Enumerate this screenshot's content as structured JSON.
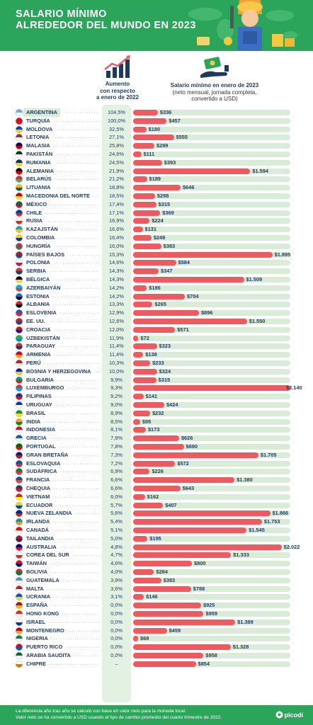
{
  "header": {
    "title_line1": "SALARIO MÍNIMO",
    "title_line2": "ALREDEDOR DEL MUNDO EN 2023"
  },
  "columns": {
    "increase_line1": "Aumento",
    "increase_line2": "con respecto",
    "increase_line3": "a enero de 2022",
    "wage_title": "Salario mínimo en enero de 2023",
    "wage_sub1": "(neto mensual, jornada completa,",
    "wage_sub2": "convertido a USD)"
  },
  "footer": {
    "note_line1": "La diferencia año tras año se calculó con base en valor neto para la moneda local.",
    "note_line2": "Valor neto se ha convertido a USD usando el tipo de cambio promedio del cuarto trimestre de 2022.",
    "logo": "picodi"
  },
  "colors": {
    "green": "#2aa55a",
    "bar": "#f05a5e",
    "track": "#d8ecd8",
    "pct_bg": "#e3f1e2"
  },
  "chart_data": {
    "type": "bar",
    "orientation": "horizontal",
    "categories": [
      "ARGENTINA",
      "TURQUÍA",
      "MOLDOVA",
      "LETONIA",
      "MALASIA",
      "PAKISTÁN",
      "RUMANIA",
      "ALEMANIA",
      "BELARÚS",
      "LITUANIA",
      "MACEDONIA DEL NORTE",
      "MÉXICO",
      "CHILE",
      "RUSIA",
      "KAZAJSTÁN",
      "COLOMBIA",
      "HUNGRÍA",
      "PAÍSES BAJOS",
      "POLONIA",
      "SERBIA",
      "BÉLGICA",
      "AZERBAIYÁN",
      "ESTONIA",
      "ALBANIA",
      "ESLOVENIA",
      "EE. UU.",
      "CROACIA",
      "UZBEKISTÁN",
      "PARAGUAY",
      "ARMENIA",
      "PERÚ",
      "BOSNIA Y HERZEGOVINA",
      "BULGARIA",
      "LUXEMBURGO",
      "FILIPINAS",
      "URUGUAY",
      "BRASIL",
      "INDIA",
      "INDONESIA",
      "GRECIA",
      "PORTUGAL",
      "GRAN BRETAÑA",
      "ESLOVAQUIA",
      "SUDÁFRICA",
      "FRANCIA",
      "CHEQUIA",
      "VIETNAM",
      "ECUADOR",
      "NUEVA ZELANDIA",
      "IRLANDA",
      "CANADÁ",
      "TAILANDIA",
      "AUSTRALIA",
      "COREA DEL SUR",
      "TAIWÁN",
      "BOLIVIA",
      "GUATEMALA",
      "MALTA",
      "UCRANIA",
      "ESPAÑA",
      "HONG KONG",
      "ISRAEL",
      "MONTENEGRO",
      "NIGERIA",
      "PUERTO RICO",
      "ARABIA SAUDITA",
      "CHIPRE"
    ],
    "increase": [
      "104,5%",
      "100,0%",
      "32,5%",
      "27,1%",
      "25,8%",
      "24,6%",
      "24,5%",
      "21,9%",
      "21,2%",
      "18,8%",
      "18,5%",
      "17,4%",
      "17,1%",
      "16,9%",
      "16,6%",
      "16,4%",
      "16,0%",
      "15,3%",
      "14,6%",
      "14,3%",
      "14,3%",
      "14,2%",
      "14,2%",
      "13,3%",
      "12,9%",
      "12,6%",
      "12,0%",
      "11,9%",
      "11,4%",
      "11,4%",
      "10,3%",
      "10,0%",
      "9,9%",
      "9,3%",
      "9,2%",
      "9,0%",
      "8,9%",
      "8,5%",
      "8,1%",
      "7,9%",
      "7,8%",
      "7,3%",
      "7,2%",
      "6,9%",
      "6,6%",
      "6,6%",
      "6,0%",
      "5,7%",
      "5,6%",
      "5,4%",
      "5,1%",
      "5,0%",
      "4,8%",
      "4,7%",
      "4,6%",
      "4,0%",
      "3,9%",
      "3,6%",
      "3,1%",
      "0,0%",
      "0,0%",
      "0,0%",
      "0,0%",
      "0,0%",
      "0,0%",
      "0,0%",
      "–"
    ],
    "values": [
      336,
      457,
      180,
      555,
      289,
      111,
      393,
      1594,
      189,
      646,
      298,
      315,
      369,
      224,
      131,
      249,
      383,
      1895,
      584,
      347,
      1509,
      186,
      704,
      265,
      896,
      1550,
      571,
      72,
      323,
      138,
      233,
      324,
      315,
      2140,
      141,
      424,
      232,
      95,
      173,
      626,
      690,
      1705,
      572,
      226,
      1380,
      643,
      162,
      407,
      1866,
      1753,
      1545,
      195,
      2022,
      1333,
      800,
      284,
      383,
      788,
      146,
      925,
      959,
      1389,
      459,
      68,
      1328,
      958,
      854
    ],
    "labels": [
      "$336",
      "$457",
      "$180",
      "$555",
      "$289",
      "$111",
      "$393",
      "$1.594",
      "$189",
      "$646",
      "$298",
      "$315",
      "$369",
      "$224",
      "$131",
      "$249",
      "$383",
      "$1.895",
      "$584",
      "$347",
      "$1.509",
      "$186",
      "$704",
      "$265",
      "$896",
      "$1.550",
      "$571",
      "$72",
      "$323",
      "$138",
      "$233",
      "$324",
      "$315",
      "$2.140",
      "$141",
      "$424",
      "$232",
      "$95",
      "$173",
      "$626",
      "$690",
      "$1.705",
      "$572",
      "$226",
      "$1.380",
      "$643",
      "$162",
      "$407",
      "$1.866",
      "$1.753",
      "$1.545",
      "$195",
      "$2.022",
      "$1.333",
      "$800",
      "$284",
      "$383",
      "$788",
      "$146",
      "$925",
      "$959",
      "$1.389",
      "$459",
      "$68",
      "$1.328",
      "$958",
      "$854"
    ],
    "highlight": "ARGENTINA",
    "flag_colors": [
      [
        "#75aadb",
        "#fff"
      ],
      [
        "#e30a17",
        "#e30a17"
      ],
      [
        "#0046ae",
        "#ffd200"
      ],
      [
        "#9e3039",
        "#fff"
      ],
      [
        "#010066",
        "#cc0001"
      ],
      [
        "#01411c",
        "#fff"
      ],
      [
        "#002b7f",
        "#fcd116"
      ],
      [
        "#000",
        "#dd0000"
      ],
      [
        "#c8313e",
        "#4aa657"
      ],
      [
        "#fdb913",
        "#006a44"
      ],
      [
        "#d20000",
        "#ffe600"
      ],
      [
        "#006847",
        "#ce1126"
      ],
      [
        "#0039a6",
        "#d52b1e"
      ],
      [
        "#fff",
        "#d52b1e"
      ],
      [
        "#00afca",
        "#fec50c"
      ],
      [
        "#fcd116",
        "#003893"
      ],
      [
        "#ce2939",
        "#477050"
      ],
      [
        "#ae1c28",
        "#21468b"
      ],
      [
        "#fff",
        "#dc143c"
      ],
      [
        "#c6363c",
        "#0c4076"
      ],
      [
        "#000",
        "#fdda24"
      ],
      [
        "#00b5e2",
        "#ef3340"
      ],
      [
        "#0072ce",
        "#000"
      ],
      [
        "#e41e20",
        "#000"
      ],
      [
        "#005ce5",
        "#ed1c24"
      ],
      [
        "#b22234",
        "#3c3b6e"
      ],
      [
        "#ff0000",
        "#171796"
      ],
      [
        "#1eb53a",
        "#0099b5"
      ],
      [
        "#d52b1e",
        "#0038a8"
      ],
      [
        "#d90012",
        "#f2a800"
      ],
      [
        "#d91023",
        "#fff"
      ],
      [
        "#002395",
        "#fecb00"
      ],
      [
        "#00966e",
        "#d62612"
      ],
      [
        "#ed2939",
        "#00a1de"
      ],
      [
        "#0038a8",
        "#ce1126"
      ],
      [
        "#0038a8",
        "#fff"
      ],
      [
        "#009c3b",
        "#ffdf00"
      ],
      [
        "#ff9933",
        "#138808"
      ],
      [
        "#ce1126",
        "#fff"
      ],
      [
        "#0d5eaf",
        "#fff"
      ],
      [
        "#006600",
        "#ff0000"
      ],
      [
        "#012169",
        "#c8102e"
      ],
      [
        "#0b4ea2",
        "#ee1c25"
      ],
      [
        "#007a4d",
        "#de3831"
      ],
      [
        "#0055a4",
        "#ef4135"
      ],
      [
        "#11457e",
        "#d7141a"
      ],
      [
        "#da251d",
        "#ffff00"
      ],
      [
        "#ffd100",
        "#034ea2"
      ],
      [
        "#00247d",
        "#cc142b"
      ],
      [
        "#169b62",
        "#ff883e"
      ],
      [
        "#ff0000",
        "#fff"
      ],
      [
        "#a51931",
        "#2d2a4a"
      ],
      [
        "#00008b",
        "#ff0000"
      ],
      [
        "#fff",
        "#cd2e3a"
      ],
      [
        "#fe0000",
        "#000095"
      ],
      [
        "#d52b1e",
        "#007934"
      ],
      [
        "#4997d0",
        "#fff"
      ],
      [
        "#cf142b",
        "#fff"
      ],
      [
        "#0057b7",
        "#ffd700"
      ],
      [
        "#aa151b",
        "#f1bf00"
      ],
      [
        "#de2910",
        "#fff"
      ],
      [
        "#fff",
        "#0038b8"
      ],
      [
        "#c40308",
        "#d4af3a"
      ],
      [
        "#008751",
        "#fff"
      ],
      [
        "#ed0000",
        "#0050f0"
      ],
      [
        "#006c35",
        "#fff"
      ],
      [
        "#fff",
        "#d57800"
      ]
    ]
  }
}
